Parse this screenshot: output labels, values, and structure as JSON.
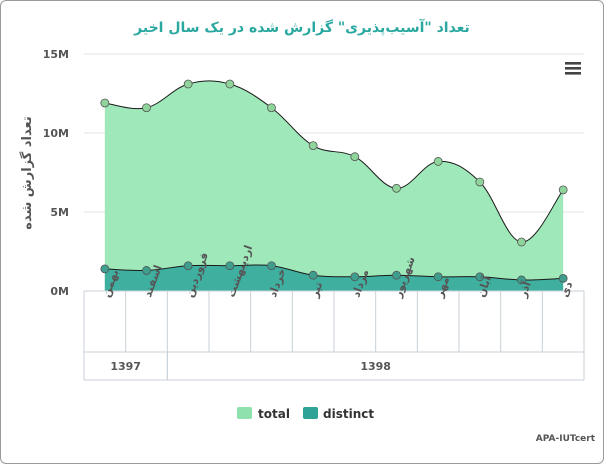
{
  "chart_data": {
    "type": "area",
    "title": "تعداد \"آسیب‌پذیری\" گزارش شده در یک سال اخیر",
    "ylabel": "تعداد گزارش شده",
    "xlabel": "",
    "ylim": [
      0,
      15000000
    ],
    "yticks": [
      {
        "value": 0,
        "label": "0M"
      },
      {
        "value": 5000000,
        "label": "5M"
      },
      {
        "value": 10000000,
        "label": "10M"
      },
      {
        "value": 15000000,
        "label": "15M"
      }
    ],
    "categories": [
      "بهمن",
      "اسفند",
      "فروردین",
      "اردیبهشت",
      "خرداد",
      "تیر",
      "مرداد",
      "شهریور",
      "مهر",
      "آبان",
      "آذر",
      "دی"
    ],
    "groups": [
      {
        "label": "1397",
        "count": 2
      },
      {
        "label": "1398",
        "count": 10
      }
    ],
    "series": [
      {
        "name": "total",
        "color": "#9fe8b9",
        "marker": "#8fd49a",
        "values": [
          11900000,
          11600000,
          13100000,
          13100000,
          11600000,
          9200000,
          8500000,
          6500000,
          8200000,
          6900000,
          3100000,
          6400000
        ]
      },
      {
        "name": "distinct",
        "color": "#3fb0a0",
        "marker": "#3e9e8e",
        "values": [
          1400000,
          1300000,
          1600000,
          1600000,
          1600000,
          1000000,
          900000,
          1000000,
          900000,
          900000,
          700000,
          800000
        ]
      }
    ],
    "grid": true,
    "legend_position": "bottom"
  },
  "ui": {
    "menu_icon": "hamburger-menu-icon",
    "credit": "APA-IUTcert"
  }
}
